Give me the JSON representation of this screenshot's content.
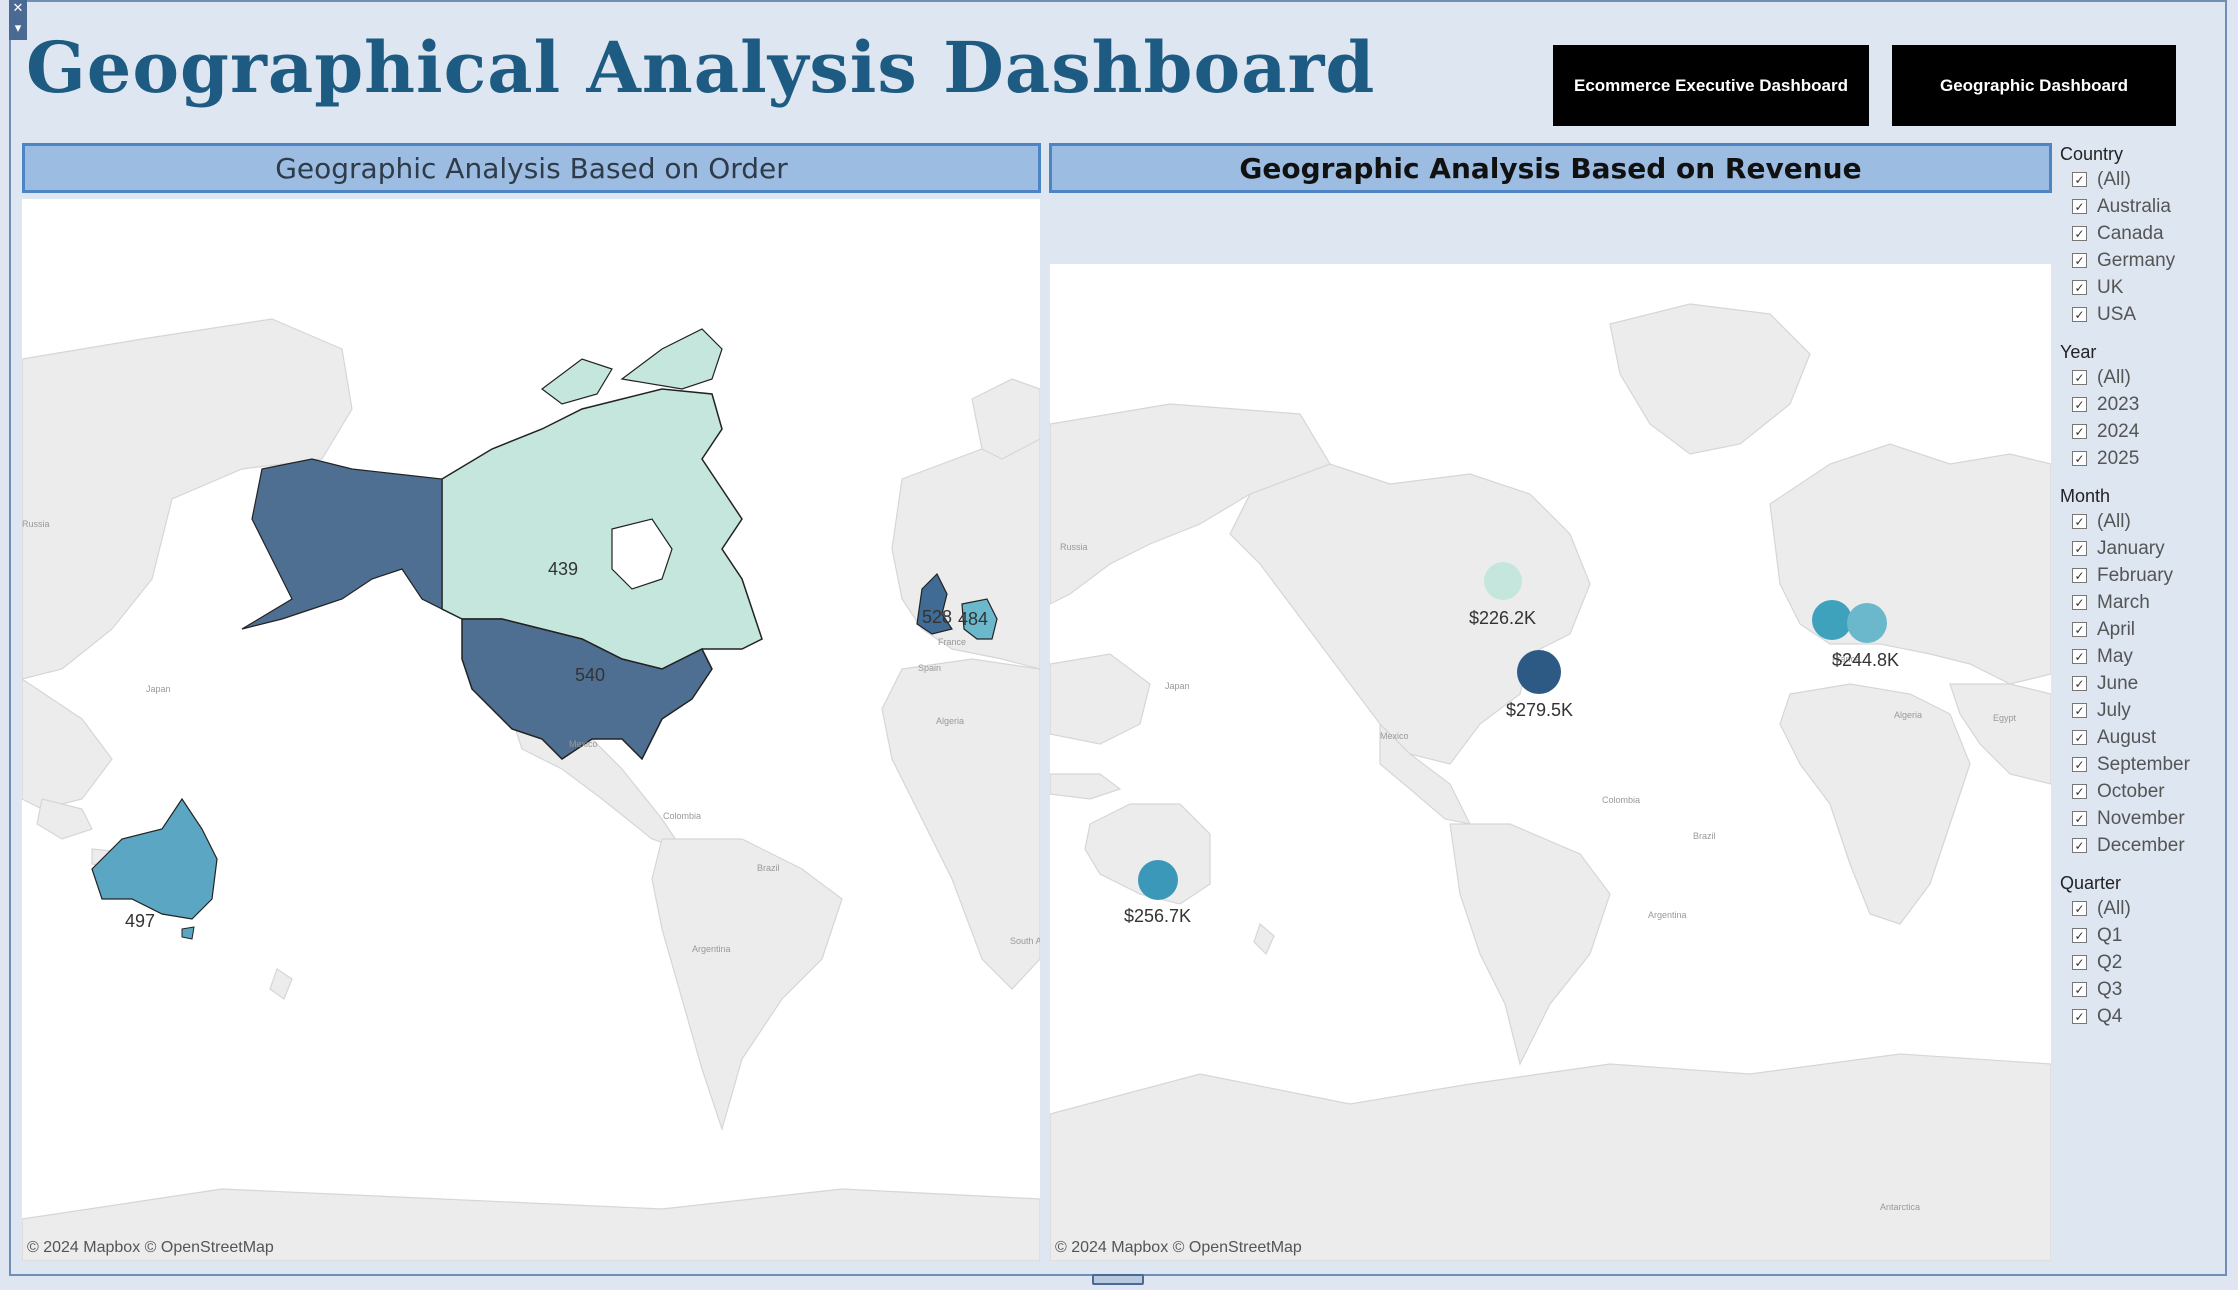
{
  "header": {
    "title": "Geographical Analysis Dashboard",
    "nav": [
      "Ecommerce Executive Dashboard",
      "Geographic Dashboard"
    ]
  },
  "panels": {
    "order": {
      "title": "Geographic Analysis Based on Order",
      "attribution": "© 2024 Mapbox © OpenStreetMap",
      "regions": [
        {
          "country": "Canada",
          "value": "439",
          "color": "#c5e6dd"
        },
        {
          "country": "USA",
          "value": "540",
          "color": "#4f6f92"
        },
        {
          "country": "Australia",
          "value": "497",
          "color": "#5ba6c2"
        },
        {
          "country": "UK",
          "value": "528",
          "color": "#3f6b94"
        },
        {
          "country": "Germany",
          "value": "484",
          "color": "#6bb8cc"
        }
      ],
      "map_labels": [
        "Russia",
        "Japan",
        "Mexico",
        "Colombia",
        "Brazil",
        "Argentina",
        "Spain",
        "France",
        "Algeria",
        "South Africa"
      ]
    },
    "revenue": {
      "title": "Geographic Analysis Based on Revenue",
      "attribution": "© 2024 Mapbox © OpenStreetMap",
      "bubbles": [
        {
          "country": "Canada",
          "value": "$226.2K",
          "color": "#c5e6dd"
        },
        {
          "country": "USA",
          "value": "$279.5K",
          "color": "#2d5a84"
        },
        {
          "country": "UK",
          "value": "",
          "color": "#3fa2bd"
        },
        {
          "country": "Germany",
          "value": "$244.8K",
          "color": "#6bb8cc"
        },
        {
          "country": "Australia",
          "value": "$256.7K",
          "color": "#3b98b8"
        }
      ],
      "map_labels": [
        "Russia",
        "Japan",
        "Mexico",
        "Colombia",
        "Brazil",
        "Argentina",
        "France",
        "Algeria",
        "Egypt",
        "Antarctica"
      ]
    }
  },
  "filters": [
    {
      "title": "Country",
      "items": [
        "(All)",
        "Australia",
        "Canada",
        "Germany",
        "UK",
        "USA"
      ]
    },
    {
      "title": "Year",
      "items": [
        "(All)",
        "2023",
        "2024",
        "2025"
      ]
    },
    {
      "title": "Month",
      "items": [
        "(All)",
        "January",
        "February",
        "March",
        "April",
        "May",
        "June",
        "July",
        "August",
        "September",
        "October",
        "November",
        "December"
      ]
    },
    {
      "title": "Quarter",
      "items": [
        "(All)",
        "Q1",
        "Q2",
        "Q3",
        "Q4"
      ]
    }
  ],
  "checkbox_glyph": "✓",
  "window_controls": {
    "close": "✕",
    "menu": "▾"
  }
}
